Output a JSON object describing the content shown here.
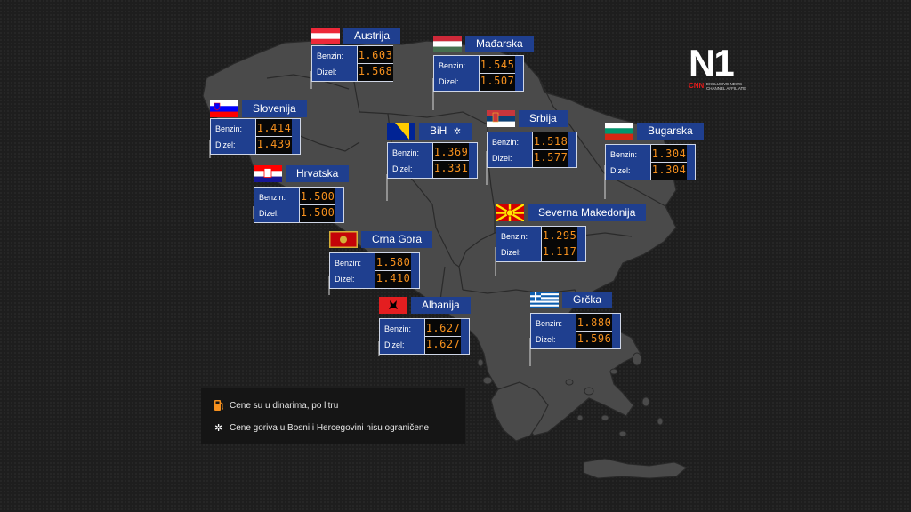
{
  "labels": {
    "benzin": "Benzin:",
    "dizel": "Dizel:"
  },
  "countries": [
    {
      "name": "Austrija",
      "benzin": "1.603",
      "dizel": "1.568",
      "flag": "austria"
    },
    {
      "name": "Mađarska",
      "benzin": "1.545",
      "dizel": "1.507",
      "flag": "hungary"
    },
    {
      "name": "Slovenija",
      "benzin": "1.414",
      "dizel": "1.439",
      "flag": "slovenia"
    },
    {
      "name": "BiH",
      "benzin": "1.369",
      "dizel": "1.331",
      "flag": "bih",
      "note_marker": "✲"
    },
    {
      "name": "Srbija",
      "benzin": "1.518",
      "dizel": "1.577",
      "flag": "serbia"
    },
    {
      "name": "Bugarska",
      "benzin": "1.304",
      "dizel": "1.304",
      "flag": "bulgaria"
    },
    {
      "name": "Hrvatska",
      "benzin": "1.500",
      "dizel": "1.500",
      "flag": "croatia"
    },
    {
      "name": "Severna Makedonija",
      "benzin": "1.295",
      "dizel": "1.117",
      "flag": "north-macedonia"
    },
    {
      "name": "Crna Gora",
      "benzin": "1.580",
      "dizel": "1.410",
      "flag": "montenegro"
    },
    {
      "name": "Albanija",
      "benzin": "1.627",
      "dizel": "1.627",
      "flag": "albania"
    },
    {
      "name": "Grčka",
      "benzin": "1.880",
      "dizel": "1.596",
      "flag": "greece"
    }
  ],
  "legend": {
    "line1": "Cene su u dinarima, po litru",
    "line2": "Cene goriva u Bosni i Hercegovini nisu ograničene",
    "icon1": "fuel-pump-icon",
    "icon2_glyph": "✲"
  },
  "logo": {
    "brand": "N1",
    "cnn": "CNN",
    "affiliate": "EXCLUSIVE NEWS CHANNEL AFFILIATE"
  },
  "colors": {
    "panel": "#1f3f8f",
    "digits": "#f5901e",
    "land": "#4a4a4a",
    "background": "#1e1e1e"
  }
}
